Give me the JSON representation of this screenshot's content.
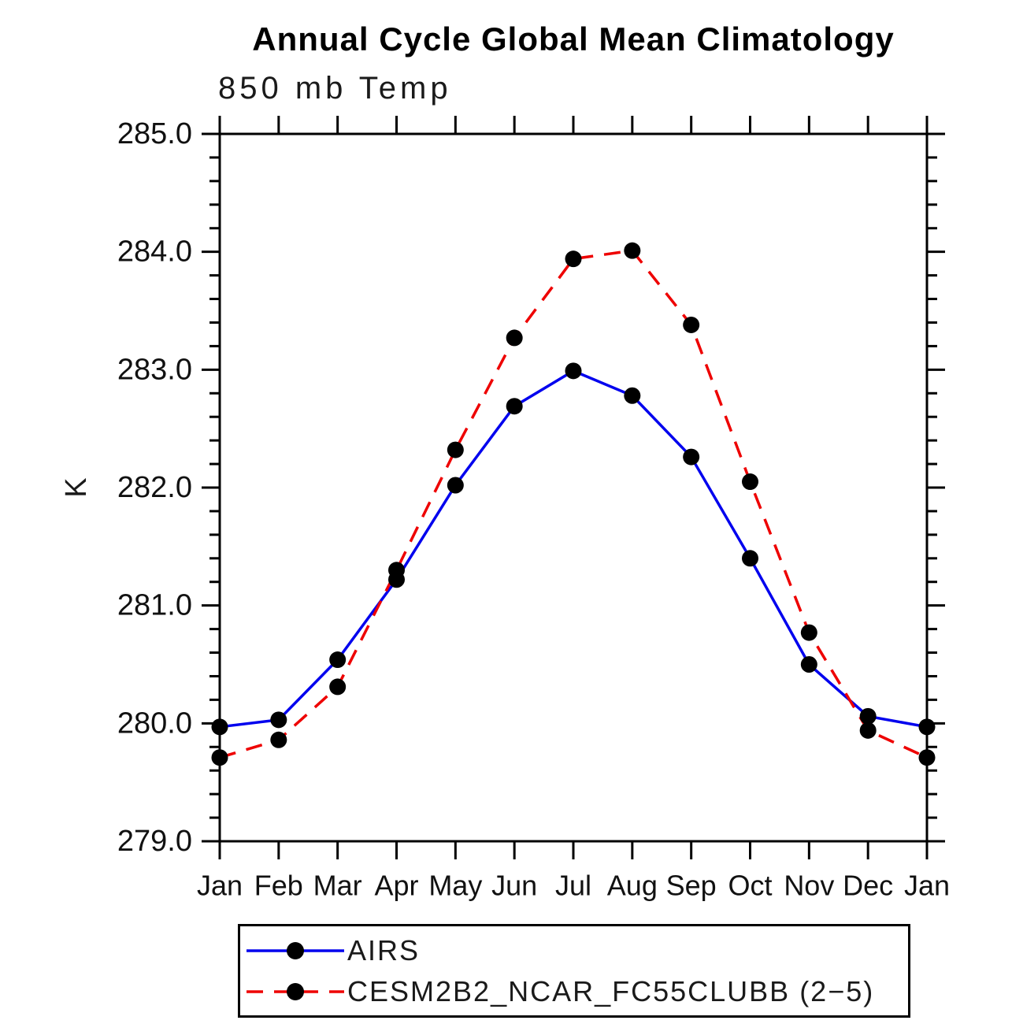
{
  "page": {
    "background_color": "#ffffff",
    "text_color": "#000000"
  },
  "chart_data": {
    "type": "line",
    "title": "Annual Cycle Global Mean Climatology",
    "subtitle": "850 mb Temp",
    "xlabel": "",
    "ylabel": "K",
    "categories": [
      "Jan",
      "Feb",
      "Mar",
      "Apr",
      "May",
      "Jun",
      "Jul",
      "Aug",
      "Sep",
      "Oct",
      "Nov",
      "Dec",
      "Jan"
    ],
    "ylim": [
      279.0,
      285.0
    ],
    "y_major_step": 1.0,
    "y_minor_step": 0.2,
    "y_tick_decimals": 1,
    "grid": false,
    "legend_position": "bottom",
    "axis_color": "#000000",
    "marker_color": "#000000",
    "series": [
      {
        "name": "AIRS",
        "color": "#0000ee",
        "style": "solid",
        "marker": "circle",
        "values": [
          279.97,
          280.03,
          280.54,
          281.22,
          282.02,
          282.69,
          282.99,
          282.78,
          282.26,
          281.4,
          280.5,
          280.06,
          279.97
        ]
      },
      {
        "name": "CESM2B2_NCAR_FC55CLUBB (2−5)",
        "color": "#ee0000",
        "style": "dashed",
        "marker": "circle",
        "values": [
          279.71,
          279.86,
          280.31,
          281.3,
          282.32,
          283.27,
          283.94,
          284.01,
          283.38,
          282.05,
          280.77,
          279.94,
          279.71
        ]
      }
    ]
  }
}
